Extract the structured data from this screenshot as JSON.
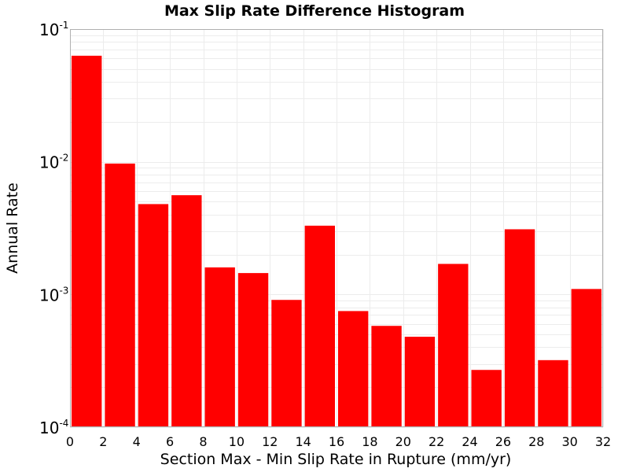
{
  "chart_data": {
    "type": "bar",
    "title": "Max Slip Rate Difference Histogram",
    "xlabel": "Section Max - Min Slip Rate in Rupture (mm/yr)",
    "ylabel": "Annual Rate",
    "y_scale": "log",
    "xlim": [
      0,
      32
    ],
    "ylim": [
      0.0001,
      0.1
    ],
    "bin_width": 2,
    "x": [
      1,
      3,
      5,
      7,
      9,
      11,
      13,
      15,
      17,
      19,
      21,
      23,
      25,
      27,
      29,
      31
    ],
    "values": [
      0.063,
      0.0097,
      0.0048,
      0.0056,
      0.0016,
      0.00145,
      0.00091,
      0.0033,
      0.00075,
      0.00058,
      0.00048,
      0.0017,
      0.00027,
      0.0031,
      0.00032,
      0.0011
    ],
    "bar_color": "#ff0000",
    "grid": true,
    "x_ticks": [
      "0",
      "2",
      "4",
      "6",
      "8",
      "10",
      "12",
      "14",
      "16",
      "18",
      "20",
      "22",
      "24",
      "26",
      "28",
      "30",
      "32"
    ],
    "y_ticks": [
      {
        "base": "10",
        "exp": "-4"
      },
      {
        "base": "10",
        "exp": "-3"
      },
      {
        "base": "10",
        "exp": "-2"
      },
      {
        "base": "10",
        "exp": "-1"
      }
    ]
  }
}
